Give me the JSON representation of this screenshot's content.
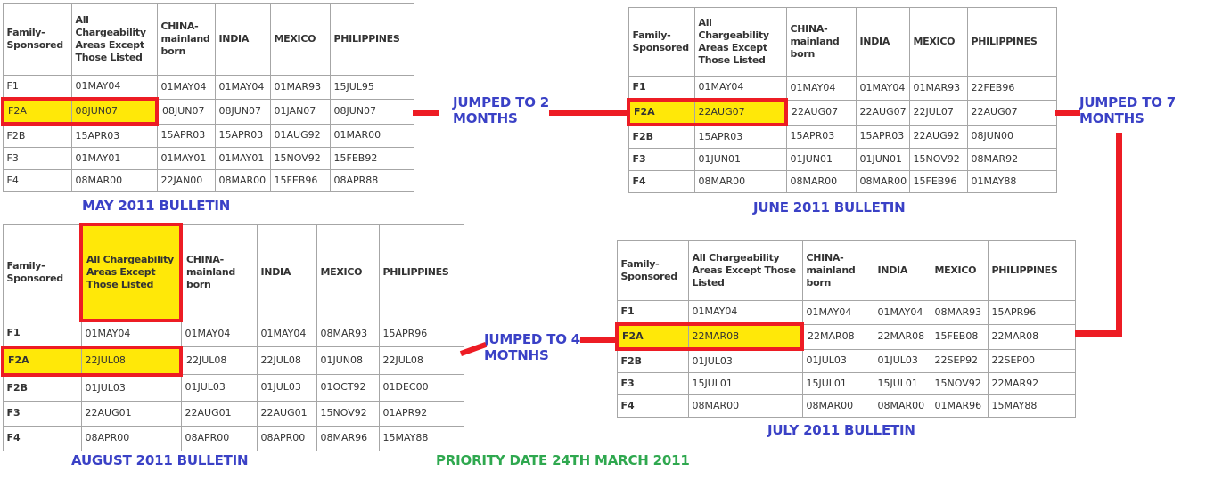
{
  "colors": {
    "highlight-yellow": "#ffe808",
    "annotation-red": "#ed1c24",
    "caption-blue": "#3a41c6",
    "priority-green": "#2fa84f",
    "table-text": "#333333",
    "table-border": "#a6a6a6"
  },
  "annotations": {
    "jump2": {
      "line1": "JUMPED TO 2",
      "line2": "MONTHS"
    },
    "jump7": {
      "line1": "JUMPED TO 7",
      "line2": "MONTHS"
    },
    "jump4": {
      "line1": "JUMPED TO 4",
      "line2": "MOTNHS"
    },
    "priority_date": "PRIORITY DATE 24TH MARCH 2011"
  },
  "chart_data": [
    {
      "type": "table",
      "title": "MAY 2011 BULLETIN",
      "headers": [
        "Family-Sponsored",
        "All Chargeability Areas Except Those Listed",
        "CHINA-mainland born",
        "INDIA",
        "MEXICO",
        "PHILIPPINES"
      ],
      "row_labels": [
        "F1",
        "F2A",
        "F2B",
        "F3",
        "F4"
      ],
      "rows": [
        [
          "01MAY04",
          "01MAY04",
          "01MAY04",
          "01MAR93",
          "15JUL95"
        ],
        [
          "08JUN07",
          "08JUN07",
          "08JUN07",
          "01JAN07",
          "08JUN07"
        ],
        [
          "15APR03",
          "15APR03",
          "15APR03",
          "01AUG92",
          "01MAR00"
        ],
        [
          "01MAY01",
          "01MAY01",
          "01MAY01",
          "15NOV92",
          "15FEB92"
        ],
        [
          "08MAR00",
          "22JAN00",
          "08MAR00",
          "15FEB96",
          "08APR88"
        ]
      ],
      "highlighted_row": "F2A",
      "highlighted_value": "08JUN07",
      "highlighted_header": null,
      "bold_row_labels": false
    },
    {
      "type": "table",
      "title": "JUNE 2011 BULLETIN",
      "headers": [
        "Family-Sponsored",
        "All Chargeability Areas Except Those Listed",
        "CHINA-mainland born",
        "INDIA",
        "MEXICO",
        "PHILIPPINES"
      ],
      "row_labels": [
        "F1",
        "F2A",
        "F2B",
        "F3",
        "F4"
      ],
      "rows": [
        [
          "01MAY04",
          "01MAY04",
          "01MAY04",
          "01MAR93",
          "22FEB96"
        ],
        [
          "22AUG07",
          "22AUG07",
          "22AUG07",
          "22JUL07",
          "22AUG07"
        ],
        [
          "15APR03",
          "15APR03",
          "15APR03",
          "22AUG92",
          "08JUN00"
        ],
        [
          "01JUN01",
          "01JUN01",
          "01JUN01",
          "15NOV92",
          "08MAR92"
        ],
        [
          "08MAR00",
          "08MAR00",
          "08MAR00",
          "15FEB96",
          "01MAY88"
        ]
      ],
      "highlighted_row": "F2A",
      "highlighted_value": "22AUG07",
      "highlighted_header": null,
      "bold_row_labels": true
    },
    {
      "type": "table",
      "title": "AUGUST 2011 BULLETIN",
      "headers": [
        "Family-Sponsored",
        "All Chargeability Areas Except Those Listed",
        "CHINA-mainland born",
        "INDIA",
        "MEXICO",
        "PHILIPPINES"
      ],
      "row_labels": [
        "F1",
        "F2A",
        "F2B",
        "F3",
        "F4"
      ],
      "rows": [
        [
          "01MAY04",
          "01MAY04",
          "01MAY04",
          "08MAR93",
          "15APR96"
        ],
        [
          "22JUL08",
          "22JUL08",
          "22JUL08",
          "01JUN08",
          "22JUL08"
        ],
        [
          "01JUL03",
          "01JUL03",
          "01JUL03",
          "01OCT92",
          "01DEC00"
        ],
        [
          "22AUG01",
          "22AUG01",
          "22AUG01",
          "15NOV92",
          "01APR92"
        ],
        [
          "08APR00",
          "08APR00",
          "08APR00",
          "08MAR96",
          "15MAY88"
        ]
      ],
      "highlighted_row": "F2A",
      "highlighted_value": "22JUL08",
      "highlighted_header": "All Chargeability Areas Except Those Listed",
      "bold_row_labels": true
    },
    {
      "type": "table",
      "title": "JULY 2011 BULLETIN",
      "headers": [
        "Family-Sponsored",
        "All Chargeability Areas Except Those Listed",
        "CHINA-mainland born",
        "INDIA",
        "MEXICO",
        "PHILIPPINES"
      ],
      "row_labels": [
        "F1",
        "F2A",
        "F2B",
        "F3",
        "F4"
      ],
      "rows": [
        [
          "01MAY04",
          "01MAY04",
          "01MAY04",
          "08MAR93",
          "15APR96"
        ],
        [
          "22MAR08",
          "22MAR08",
          "22MAR08",
          "15FEB08",
          "22MAR08"
        ],
        [
          "01JUL03",
          "01JUL03",
          "01JUL03",
          "22SEP92",
          "22SEP00"
        ],
        [
          "15JUL01",
          "15JUL01",
          "15JUL01",
          "15NOV92",
          "22MAR92"
        ],
        [
          "08MAR00",
          "08MAR00",
          "08MAR00",
          "01MAR96",
          "15MAY88"
        ]
      ],
      "highlighted_row": "F2A",
      "highlighted_value": "22MAR08",
      "highlighted_header": null,
      "bold_row_labels": true
    }
  ]
}
